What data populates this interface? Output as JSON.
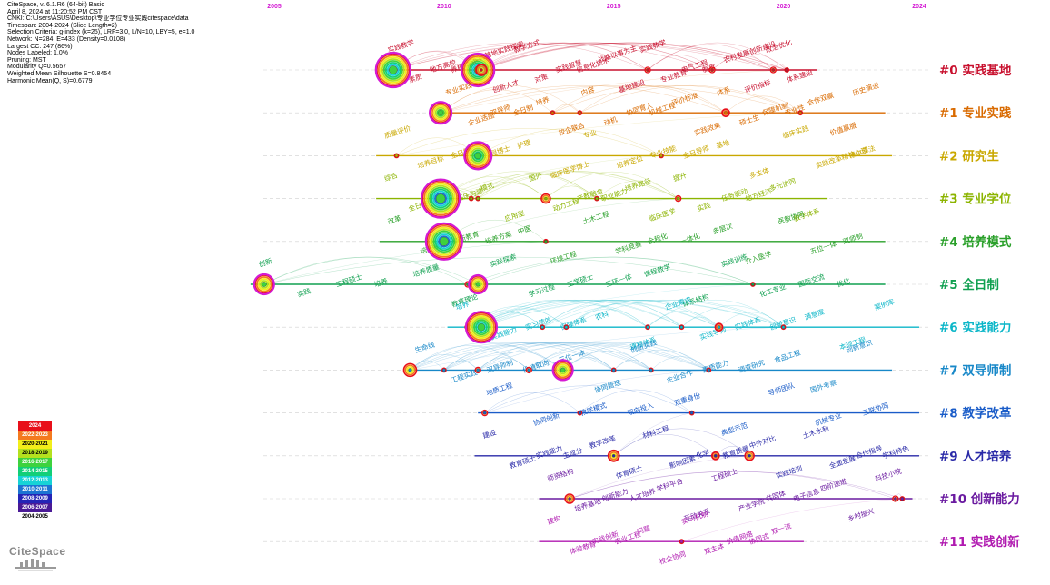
{
  "info": [
    "CiteSpace, v. 6.1.R6 (64-bit) Basic",
    "April 8, 2024 at 11:20:52 PM CST",
    "CNKI: C:\\Users\\ASUS\\Desktop\\专业学位专业实践citespace\\data",
    "Timespan: 2004-2024 (Slice Length=2)",
    "Selection Criteria: g-index (k=25), LRF=3.0, L/N=10, LBY=5, e=1.0",
    "Network: N=284, E=433 (Density=0.0108)",
    "Largest CC: 247 (86%)",
    "Nodes Labeled: 1.0%",
    "Pruning: MST",
    "Modularity Q=0.5657",
    "Weighted Mean Silhouette S=0.8454",
    "Harmonic Mean(Q, S)=0.6779"
  ],
  "brand": "CiteSpace",
  "legend": [
    {
      "label": "2024",
      "color": "#e8101a"
    },
    {
      "label": "2022-2023",
      "color": "#f47a1f"
    },
    {
      "label": "2020-2021",
      "color": "#f2ee1a"
    },
    {
      "label": "2018-2019",
      "color": "#b4e11e"
    },
    {
      "label": "2016-2017",
      "color": "#3ed23e"
    },
    {
      "label": "2014-2015",
      "color": "#12cf78"
    },
    {
      "label": "2012-2013",
      "color": "#16d3d6"
    },
    {
      "label": "2010-2011",
      "color": "#1c74d2"
    },
    {
      "label": "2008-2009",
      "color": "#2424b6"
    },
    {
      "label": "2006-2007",
      "color": "#4a1a96"
    },
    {
      "label": "2004-2005",
      "color": "#ffffff"
    }
  ],
  "chart_data": {
    "type": "timeline",
    "x_axis_labels": [
      2005,
      2010,
      2015,
      2020,
      2024
    ],
    "x_range": [
      2005,
      2024
    ],
    "clusters": [
      {
        "id": "#0",
        "label": "实践基地",
        "color": "#c8102e",
        "start": 2008.1,
        "end": 2021.0,
        "nodes": [
          {
            "year": 2008.5,
            "size": 18
          },
          {
            "year": 2011.0,
            "size": 17
          },
          {
            "year": 2011.1,
            "size": 6
          },
          {
            "year": 2016.0,
            "size": 3
          },
          {
            "year": 2017.9,
            "size": 3
          },
          {
            "year": 2019.7,
            "size": 3
          },
          {
            "year": 2020.1,
            "size": 2
          }
        ],
        "keywords": [
          "实践教学",
          "素质",
          "地方高校",
          "养植领域",
          "实践基地实践探索",
          "创新人才",
          "教学方式",
          "对策",
          "实践智慧",
          "信息化技术",
          "战略以事为主",
          "基地建设",
          "实践教学",
          "专业教育",
          "电气工程",
          "制度",
          "农村发展创新建设",
          "评价指标",
          "政治优化",
          "体系建设"
        ]
      },
      {
        "id": "#1",
        "label": "专业实践",
        "color": "#d96a00",
        "start": 2009.8,
        "end": 2023.0,
        "nodes": [
          {
            "year": 2009.9,
            "size": 11
          },
          {
            "year": 2013.2,
            "size": 2
          },
          {
            "year": 2014.0,
            "size": 2
          },
          {
            "year": 2018.3,
            "size": 4
          },
          {
            "year": 2020.5,
            "size": 2
          }
        ],
        "keywords": [
          "专业实践",
          "企业选题",
          "双导师",
          "全日制",
          "培养",
          "校企联合",
          "内容",
          "动机",
          "协同育人",
          "机械工程",
          "评价标准",
          "实践效果",
          "体系",
          "硕士生",
          "保障机制",
          "专业性",
          "合作双赢",
          "价值赢服",
          "历史演进"
        ]
      },
      {
        "id": "#2",
        "label": "研究生",
        "color": "#c9a800",
        "start": 2008.0,
        "end": 2023.2,
        "nodes": [
          {
            "year": 2008.6,
            "size": 2
          },
          {
            "year": 2011.0,
            "size": 14
          },
          {
            "year": 2016.4,
            "size": 2
          }
        ],
        "keywords": [
          "质量评价",
          "培养目标",
          "全日制",
          "工程博士",
          "护理",
          "临床医学博士",
          "专业",
          "培养定位",
          "专业技能",
          "全日导师",
          "基地",
          "多主体",
          "临床实践",
          "实践改革精神心理",
          "德尔菲法"
        ]
      },
      {
        "id": "#3",
        "label": "专业学位",
        "color": "#8cb400",
        "start": 2008.0,
        "end": 2021.3,
        "nodes": [
          {
            "year": 2009.9,
            "size": 20
          },
          {
            "year": 2010.8,
            "size": 2
          },
          {
            "year": 2011.0,
            "size": 2
          },
          {
            "year": 2013.0,
            "size": 5
          },
          {
            "year": 2014.5,
            "size": 2
          },
          {
            "year": 2016.9,
            "size": 3
          }
        ],
        "keywords": [
          "综合",
          "全日制",
          "复合型",
          "临床构建",
          "模式",
          "应用型",
          "国外",
          "动力工程",
          "产教融合",
          "职业能力",
          "培养路径",
          "临床医学",
          "提升",
          "实践",
          "任务驱动",
          "地方经济",
          "多元协同",
          "教学体系"
        ]
      },
      {
        "id": "#4",
        "label": "培养模式",
        "color": "#2aa02a",
        "start": 2008.1,
        "end": 2023.0,
        "nodes": [
          {
            "year": 2010.0,
            "size": 19
          },
          {
            "year": 2013.0,
            "size": 2
          }
        ],
        "keywords": [
          "改革",
          "培养模式",
          "创新教育",
          "培养方案",
          "中医",
          "环境工程",
          "土木工程",
          "学科竞赛",
          "全程化",
          "一体化",
          "多层次",
          "介入医学",
          "医教协同",
          "五位一体",
          "双师制"
        ]
      },
      {
        "id": "#5",
        "label": "全日制",
        "color": "#10a050",
        "start": 2004.3,
        "end": 2023.0,
        "nodes": [
          {
            "year": 2004.7,
            "size": 10
          },
          {
            "year": 2010.7,
            "size": 3
          },
          {
            "year": 2011.0,
            "size": 9
          },
          {
            "year": 2019.1,
            "size": 2
          }
        ],
        "keywords": [
          "创新",
          "实践",
          "工程硕士",
          "培养",
          "培养质量",
          "教育理论",
          "实践探索",
          "学习过程",
          "工学硕士",
          "三环一体",
          "课程教学",
          "体系结构",
          "实践训练",
          "化工专业",
          "国际交流",
          "优化"
        ]
      },
      {
        "id": "#6",
        "label": "实践能力",
        "color": "#0bb6c8",
        "start": 2010.1,
        "end": 2024.0,
        "nodes": [
          {
            "year": 2010.7,
            "size": 3
          },
          {
            "year": 2011.1,
            "size": 16
          },
          {
            "year": 2012.9,
            "size": 2
          },
          {
            "year": 2013.6,
            "size": 2
          },
          {
            "year": 2016.0,
            "size": 2
          },
          {
            "year": 2017.0,
            "size": 2
          },
          {
            "year": 2018.1,
            "size": 4
          },
          {
            "year": 2020.0,
            "size": 2
          }
        ],
        "keywords": [
          "培养",
          "实践能力",
          "实习绩效",
          "保障体系",
          "农科",
          "课程体系",
          "企业需求",
          "实践导师",
          "实践体系",
          "创新意识",
          "满意度",
          "本硕工程",
          "案例库"
        ]
      },
      {
        "id": "#7",
        "label": "双导师制",
        "color": "#1888c8",
        "start": 2008.9,
        "end": 2023.2,
        "nodes": [
          {
            "year": 2009.0,
            "size": 7
          },
          {
            "year": 2010.0,
            "size": 2
          },
          {
            "year": 2011.0,
            "size": 3
          },
          {
            "year": 2012.5,
            "size": 3
          },
          {
            "year": 2013.5,
            "size": 10
          },
          {
            "year": 2015.0,
            "size": 2
          },
          {
            "year": 2016.1,
            "size": 2
          },
          {
            "year": 2017.8,
            "size": 2
          }
        ],
        "keywords": [
          "生命线",
          "工程实践",
          "双导师制",
          "价值取向",
          "三位一体",
          "协同管理",
          "创新实践",
          "企业合作",
          "素质能力",
          "调查研究",
          "食品工程",
          "国外考察",
          "创新意识"
        ]
      },
      {
        "id": "#8",
        "label": "教学改革",
        "color": "#1a5cc8",
        "start": 2011.0,
        "end": 2024.0,
        "nodes": [
          {
            "year": 2011.2,
            "size": 3
          },
          {
            "year": 2014.0,
            "size": 2
          },
          {
            "year": 2017.3,
            "size": 2
          }
        ],
        "keywords": [
          "地质工程",
          "协同创新",
          "教学模式",
          "双向投入",
          "双重身份",
          "典型示范",
          "导师团队",
          "机械专业",
          "三联协同"
        ]
      },
      {
        "id": "#9",
        "label": "人才培养",
        "color": "#2a2aa8",
        "start": 2010.9,
        "end": 2024.0,
        "nodes": [
          {
            "year": 2015.0,
            "size": 6
          },
          {
            "year": 2018.0,
            "size": 4
          },
          {
            "year": 2019.0,
            "size": 5
          }
        ],
        "keywords": [
          "建设",
          "教育硕士",
          "实践能力",
          "主成分",
          "教学改革",
          "体育硕士",
          "材料工程",
          "影响因素",
          "化学",
          "教育质量",
          "中外对比",
          "实践培训",
          "土木水利",
          "全面发展",
          "合作指导",
          "学科特色"
        ]
      },
      {
        "id": "#10",
        "label": "创新能力",
        "color": "#6a1aa0",
        "start": 2012.8,
        "end": 2023.8,
        "nodes": [
          {
            "year": 2013.7,
            "size": 5
          },
          {
            "year": 2023.3,
            "size": 3
          },
          {
            "year": 2023.5,
            "size": 2
          }
        ],
        "keywords": [
          "师资结构",
          "培养基地",
          "创新能力",
          "人才培养",
          "学科平台",
          "互动关系",
          "工程硕士",
          "产业学院",
          "共同体",
          "电子信息",
          "四阶递进",
          "乡村振兴",
          "科技小院"
        ]
      },
      {
        "id": "#11",
        "label": "实践创新",
        "color": "#b01ab0",
        "start": 2012.8,
        "end": 2020.6,
        "nodes": [
          {
            "year": 2017.0,
            "size": 2
          }
        ],
        "keywords": [
          "建构",
          "体验教育",
          "实践创新",
          "农业工程",
          "问题",
          "校企协同",
          "实习机制",
          "双主体",
          "价值网络",
          "协同式",
          "双一流"
        ]
      }
    ]
  }
}
